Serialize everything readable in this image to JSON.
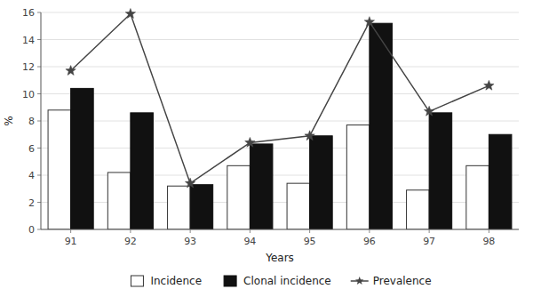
{
  "chart_data": {
    "type": "bar",
    "categories": [
      "91",
      "92",
      "93",
      "94",
      "95",
      "96",
      "97",
      "98"
    ],
    "series": [
      {
        "name": "Incidence",
        "type": "bar",
        "color": "#ffffff",
        "values": [
          8.8,
          4.2,
          3.2,
          4.7,
          3.4,
          7.7,
          2.9,
          4.7
        ]
      },
      {
        "name": "Clonal incidence",
        "type": "bar",
        "color": "#111111",
        "values": [
          10.4,
          8.6,
          3.3,
          6.3,
          6.9,
          15.2,
          8.6,
          7.0
        ]
      },
      {
        "name": "Prevalence",
        "type": "line",
        "color": "#444444",
        "marker": "star",
        "values": [
          11.7,
          15.9,
          3.4,
          6.4,
          6.9,
          15.3,
          8.7,
          10.6
        ]
      }
    ],
    "xlabel": "Years",
    "ylabel": "%",
    "ylim": [
      0,
      16
    ],
    "yticks": [
      0,
      2,
      4,
      6,
      8,
      10,
      12,
      14,
      16
    ],
    "grid": true,
    "legend": "bottom"
  }
}
